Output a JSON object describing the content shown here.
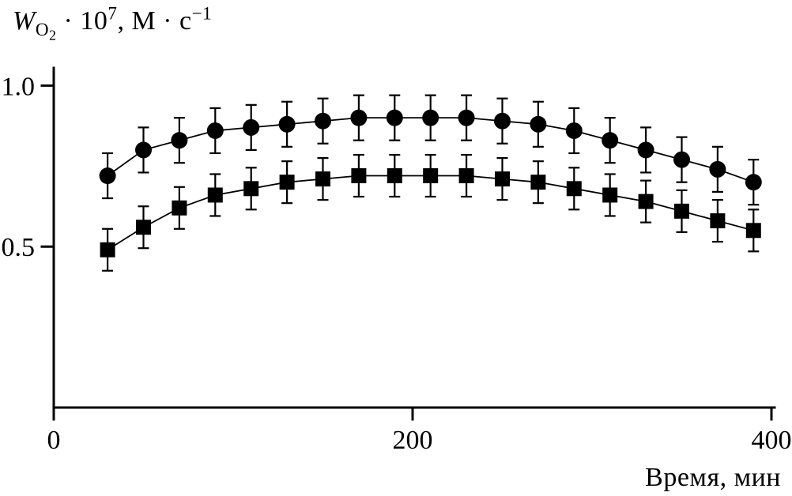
{
  "figure": {
    "background": "#ffffff",
    "ink_color": "#000000",
    "y_axis_title": {
      "symbol": "W",
      "sub_element": "O",
      "sub_sub": "2",
      "factor": " · 10",
      "exponent": "7",
      "units": ", М · с",
      "units_exponent": "−1"
    },
    "x_axis_title": "Время, мин"
  },
  "chart_data": {
    "type": "line",
    "title": "",
    "xlabel": "Время, мин",
    "ylabel": "W_O2 · 10^7, М · с^−1",
    "xlim": [
      0,
      400
    ],
    "ylim": [
      0,
      1.05
    ],
    "x_ticks": [
      0,
      200,
      400
    ],
    "x_tick_labels": [
      "0",
      "200",
      "400"
    ],
    "y_ticks": [
      0.5,
      1.0
    ],
    "y_tick_labels": [
      "0.5",
      "1.0"
    ],
    "grid": false,
    "legend_position": "none",
    "marker_color": "#000000",
    "x": [
      30,
      50,
      70,
      90,
      110,
      130,
      150,
      170,
      190,
      210,
      230,
      250,
      270,
      290,
      310,
      330,
      350,
      370,
      390
    ],
    "series": [
      {
        "name": "series-circles",
        "marker": "circle",
        "error": 0.07,
        "values": [
          0.72,
          0.8,
          0.83,
          0.86,
          0.87,
          0.88,
          0.89,
          0.9,
          0.9,
          0.9,
          0.9,
          0.89,
          0.88,
          0.86,
          0.83,
          0.8,
          0.77,
          0.74,
          0.7
        ]
      },
      {
        "name": "series-squares",
        "marker": "square",
        "error": 0.065,
        "values": [
          0.49,
          0.56,
          0.62,
          0.66,
          0.68,
          0.7,
          0.71,
          0.72,
          0.72,
          0.72,
          0.72,
          0.71,
          0.7,
          0.68,
          0.66,
          0.64,
          0.61,
          0.58,
          0.55
        ]
      }
    ]
  }
}
